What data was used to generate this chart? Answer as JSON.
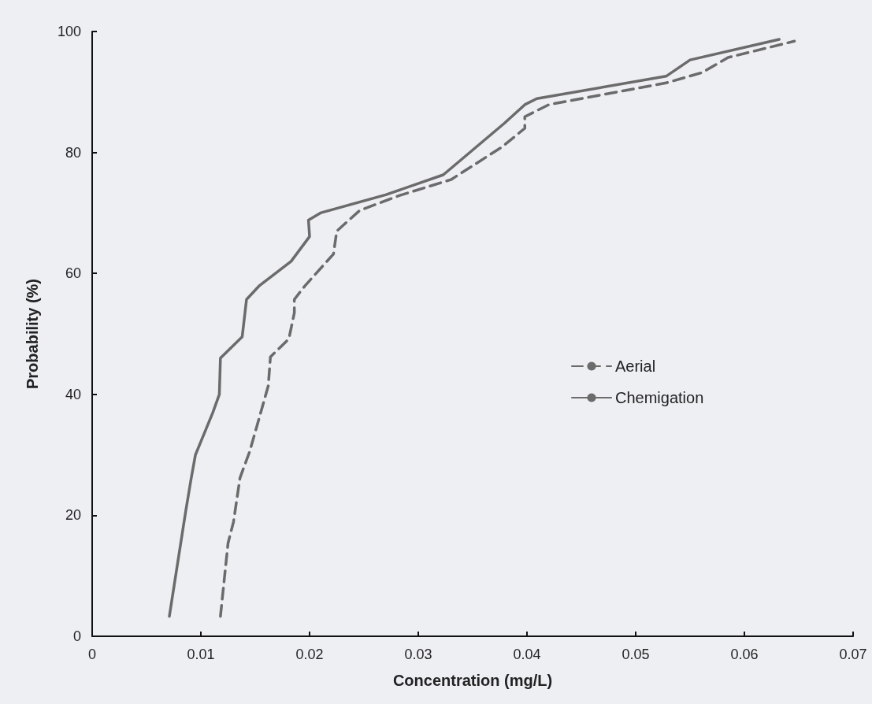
{
  "chart_data": {
    "type": "line",
    "xlabel": "Concentration (mg/L)",
    "ylabel": "Probability (%)",
    "xlim": [
      0,
      0.07
    ],
    "xticks": [
      0,
      0.01,
      0.02,
      0.03,
      0.04,
      0.05,
      0.06,
      0.07
    ],
    "ylim": [
      0,
      100
    ],
    "yticks": [
      0,
      20,
      40,
      60,
      80,
      100
    ],
    "grid": false,
    "legend": "right",
    "marker": "none",
    "series": [
      {
        "name": "Aerial",
        "color": "#6b6b6b",
        "line_style": "dashed",
        "x": [
          0.0118,
          0.0125,
          0.013,
          0.0136,
          0.0145,
          0.0162,
          0.0164,
          0.0181,
          0.0186,
          0.0186,
          0.0196,
          0.0222,
          0.0225,
          0.0246,
          0.0283,
          0.033,
          0.0377,
          0.0398,
          0.0398,
          0.042,
          0.0528,
          0.0561,
          0.0585,
          0.0646
        ],
        "values": [
          3.3,
          15.4,
          18.9,
          26.2,
          30.6,
          41.4,
          46.2,
          49.2,
          53.5,
          55.7,
          58,
          63.2,
          67,
          70.4,
          72.9,
          75.5,
          80.9,
          84,
          85.9,
          87.9,
          91.5,
          93.2,
          95.7,
          98.4
        ]
      },
      {
        "name": "Chemigation",
        "color": "#6b6b6b",
        "line_style": "solid",
        "x": [
          0.0071,
          0.0086,
          0.0091,
          0.0095,
          0.0111,
          0.0117,
          0.0118,
          0.0138,
          0.0142,
          0.0154,
          0.0183,
          0.02,
          0.0199,
          0.021,
          0.027,
          0.0323,
          0.0379,
          0.0398,
          0.0409,
          0.0528,
          0.055,
          0.0632
        ],
        "values": [
          3.3,
          20.6,
          26,
          30,
          37,
          40,
          46,
          49.5,
          55.7,
          58,
          62,
          66.1,
          68.8,
          70,
          73,
          76.3,
          84.8,
          87.9,
          88.9,
          92.6,
          95.3,
          98.7
        ]
      }
    ]
  }
}
